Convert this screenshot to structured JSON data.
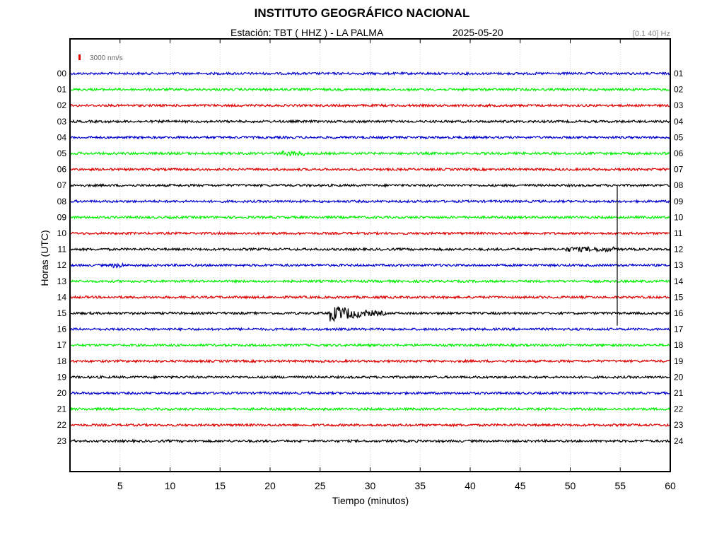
{
  "header": {
    "title": "INSTITUTO GEOGRÁFICO NACIONAL",
    "station": "Estación:  TBT ( HHZ ) - LA PALMA",
    "date": "2025-05-20",
    "filter": "[0.1 40] Hz"
  },
  "chart_data": {
    "type": "line",
    "title": "INSTITUTO GEOGRÁFICO NACIONAL",
    "xlabel": "Tiempo (minutos)",
    "ylabel": "Horas (UTC)",
    "xlim": [
      0,
      60
    ],
    "x_ticks": [
      5,
      10,
      15,
      20,
      25,
      30,
      35,
      40,
      45,
      50,
      55,
      60
    ],
    "left_hour_labels": [
      "00",
      "01",
      "02",
      "03",
      "04",
      "05",
      "06",
      "07",
      "08",
      "09",
      "10",
      "11",
      "12",
      "13",
      "14",
      "15",
      "16",
      "17",
      "18",
      "19",
      "20",
      "21",
      "22",
      "23"
    ],
    "right_hour_labels": [
      "01",
      "02",
      "03",
      "04",
      "05",
      "06",
      "07",
      "08",
      "09",
      "10",
      "11",
      "12",
      "13",
      "14",
      "15",
      "16",
      "17",
      "18",
      "19",
      "20",
      "21",
      "22",
      "23",
      "24"
    ],
    "scale_label": "3000 nm/s",
    "grid": true,
    "trace_colors": [
      "#0000cc",
      "#00ee00",
      "#dd0000",
      "#000000"
    ],
    "events": [
      {
        "hour": 5,
        "minute_start": 21,
        "minute_end": 23.5,
        "amplitude": "small"
      },
      {
        "hour": 11,
        "minute_start": 49.5,
        "minute_end": 54.5,
        "amplitude": "small"
      },
      {
        "hour": 12,
        "minute_start": 4.2,
        "minute_end": 5.3,
        "amplitude": "small"
      },
      {
        "hour": 15,
        "minute_start": 26,
        "minute_end": 31.5,
        "amplitude": "large"
      },
      {
        "hour": 11,
        "minute_start": 54.6,
        "minute_end": 54.8,
        "amplitude": "spike"
      }
    ]
  }
}
